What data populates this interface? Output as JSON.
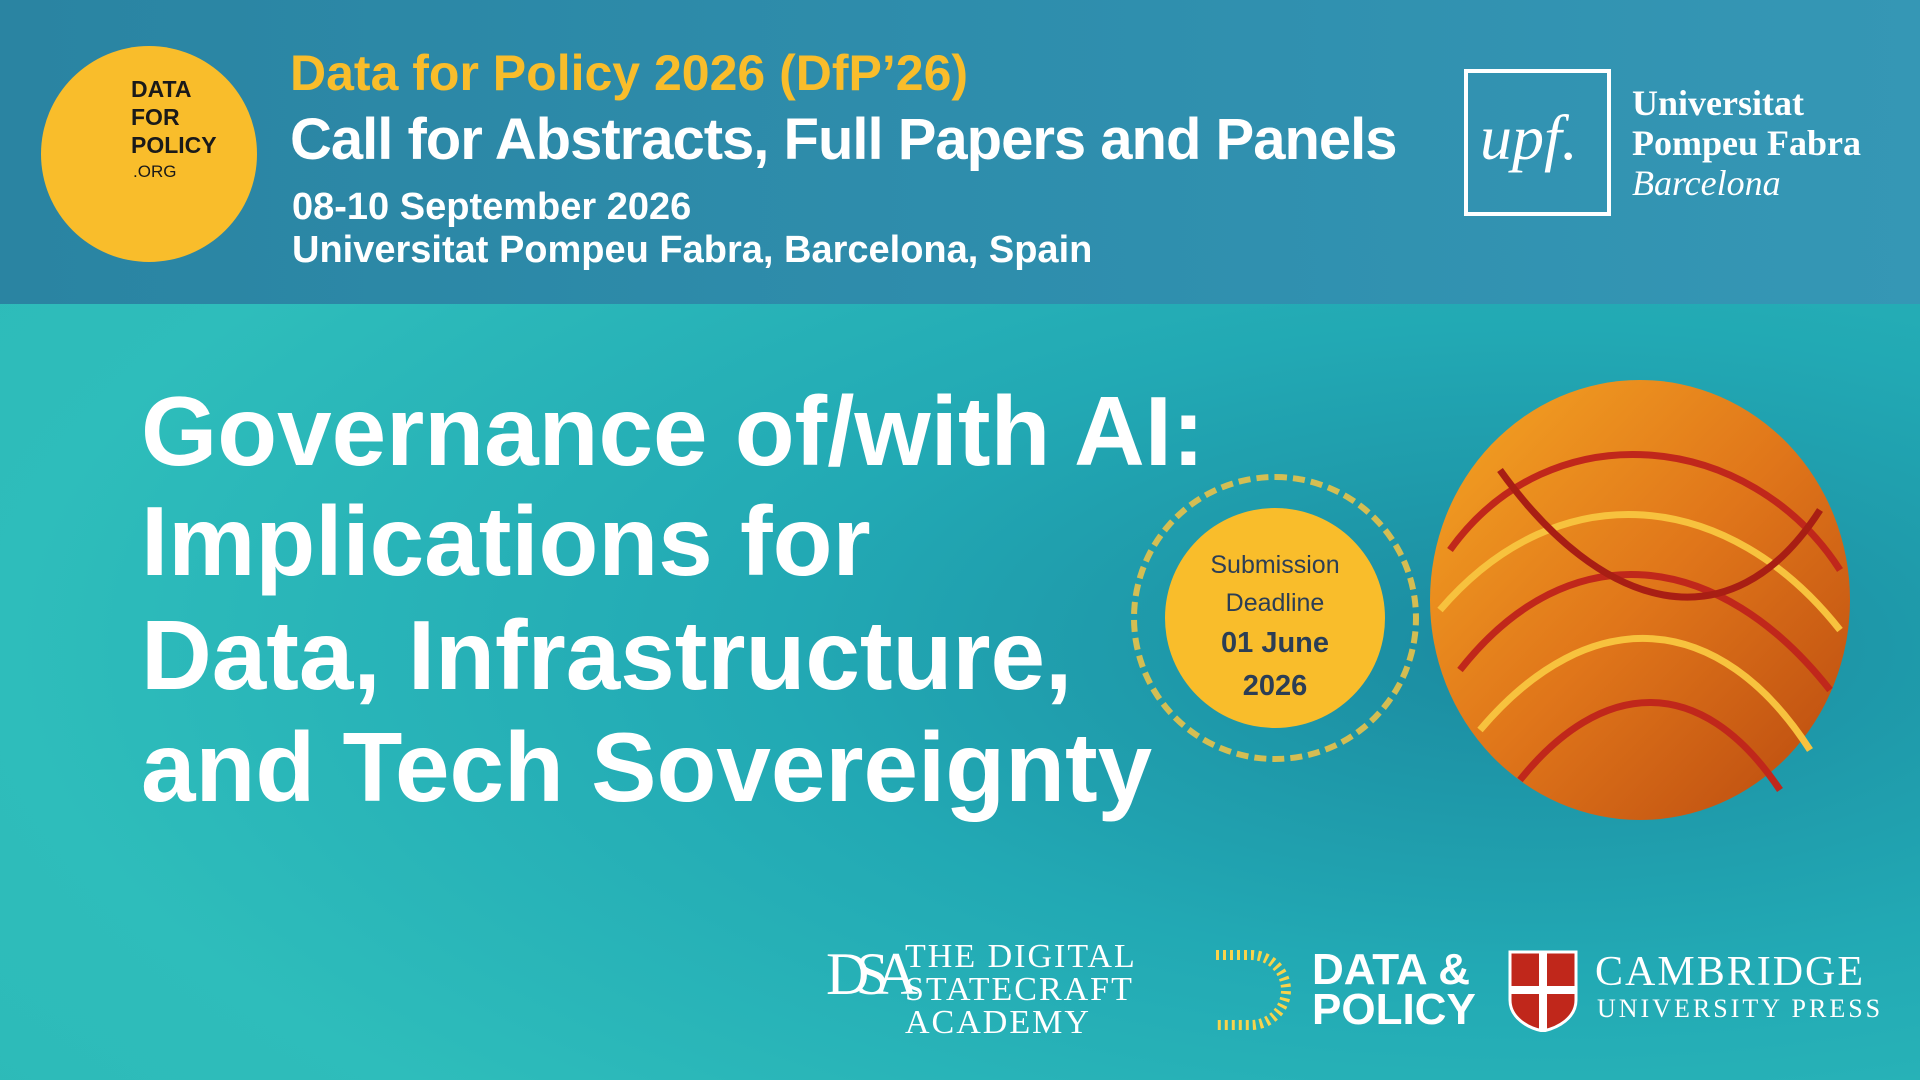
{
  "logo": {
    "lines": [
      "DATA",
      "FOR",
      "POLICY"
    ],
    "suffix": ".ORG"
  },
  "header": {
    "title": "Data for Policy 2026 (DfP’26)",
    "subtitle": "Call for Abstracts, Full Papers and Panels",
    "dates": "08-10 September 2026",
    "location": "Universitat Pompeu Fabra, Barcelona, Spain"
  },
  "host": {
    "mark": "upf.",
    "lines": [
      "Universitat",
      "Pompeu Fabra"
    ],
    "city": "Barcelona"
  },
  "theme": {
    "lines": [
      "Governance of/with AI:",
      "Implications for",
      "Data, Infrastructure,",
      "and Tech Sovereignty"
    ]
  },
  "deadline": {
    "label_lines": [
      "Submission",
      "Deadline"
    ],
    "date_lines": [
      "01 June",
      "2026"
    ]
  },
  "partners": {
    "dsa": {
      "monogram": "DSA",
      "lines": [
        "THE DIGITAL",
        "STATECRAFT",
        "ACADEMY"
      ]
    },
    "dap": {
      "lines": [
        "DATA &",
        "POLICY"
      ]
    },
    "cup": {
      "lines": [
        "CAMBRIDGE",
        "UNIVERSITY PRESS"
      ]
    }
  }
}
